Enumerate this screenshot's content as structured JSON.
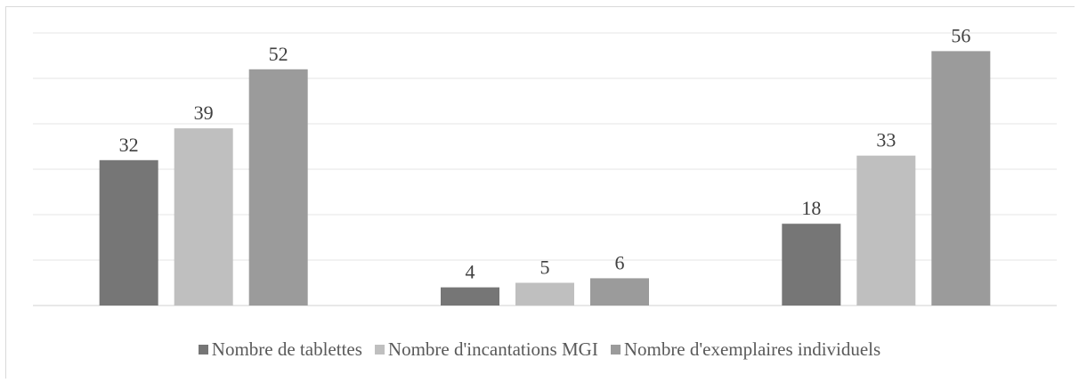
{
  "chart_data": {
    "type": "bar",
    "title": "",
    "xlabel": "",
    "ylabel": "",
    "categories": [
      "",
      "",
      ""
    ],
    "ylim": [
      0,
      60
    ],
    "grid": true,
    "legend_position": "bottom",
    "series": [
      {
        "name": "Nombre de tablettes",
        "color": "#767676",
        "values": [
          32,
          4,
          18
        ]
      },
      {
        "name": "Nombre d'incantations MGI",
        "color": "#bfbfbf",
        "values": [
          39,
          5,
          33
        ]
      },
      {
        "name": "Nombre d'exemplaires individuels",
        "color": "#9b9b9b",
        "values": [
          52,
          6,
          56
        ]
      }
    ]
  }
}
